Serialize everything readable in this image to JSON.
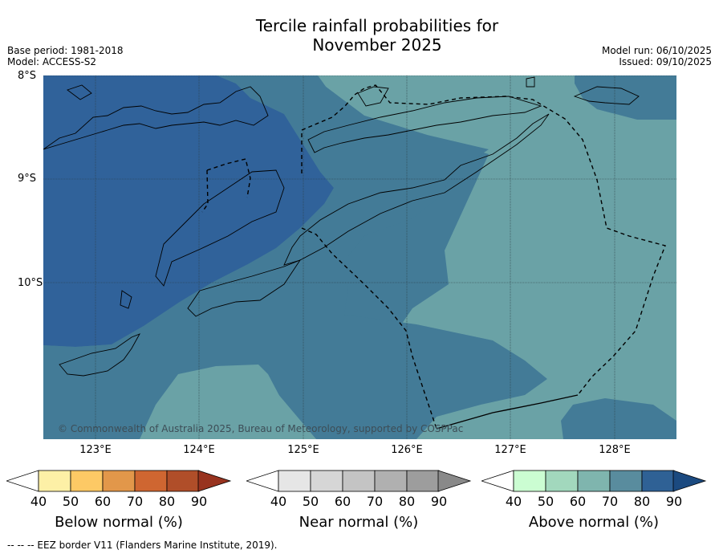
{
  "title_line1": "Tercile rainfall probabilities for",
  "title_line2": "November 2025",
  "base_period": "Base period: 1981-2018",
  "model": "Model: ACCESS-S2",
  "model_run": "Model run: 06/10/2025",
  "issued": "Issued: 09/10/2025",
  "lat_labels": [
    "8°S",
    "9°S",
    "10°S"
  ],
  "lon_labels": [
    "123°E",
    "124°E",
    "125°E",
    "126°E",
    "127°E",
    "128°E"
  ],
  "copyright": "© Commonwealth of Australia 2025, Bureau of Meteorology, supported by COSPPac",
  "colorbars": [
    {
      "label": "Below normal (%)",
      "ticks": [
        "40",
        "50",
        "60",
        "70",
        "80",
        "90"
      ],
      "colors": [
        "#fdf0a6",
        "#fdc965",
        "#e2974a",
        "#cf6631",
        "#b04e29",
        "#98331f"
      ]
    },
    {
      "label": "Near normal (%)",
      "ticks": [
        "40",
        "50",
        "60",
        "70",
        "80",
        "90"
      ],
      "colors": [
        "#e6e6e6",
        "#d6d6d6",
        "#c4c4c4",
        "#b0b0b0",
        "#9d9d9d",
        "#898989"
      ]
    },
    {
      "label": "Above normal (%)",
      "ticks": [
        "40",
        "50",
        "60",
        "70",
        "80",
        "90"
      ],
      "colors": [
        "#cbfdd2",
        "#a2d8bd",
        "#7fb5ae",
        "#598c9e",
        "#2f6195",
        "#1b4a80"
      ]
    }
  ],
  "footer": "--  --  -- EEZ border V11 (Flanders Marine Institute, 2019)."
}
